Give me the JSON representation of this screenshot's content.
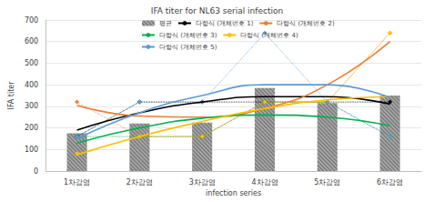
{
  "chart_data": {
    "type": "bar",
    "title": "IFA titer for NL63 serial infection",
    "x_label": "infection series",
    "y_label": "IFA titer",
    "categories": [
      "1차감염",
      "2차감염",
      "3차감염",
      "4차감염",
      "5차감염",
      "6차감염"
    ],
    "values": [
      175,
      220,
      225,
      385,
      315,
      350
    ],
    "name": "평균",
    "color": "#7f7f7f",
    "ylim": [
      0,
      700
    ],
    "yticks": [
      0,
      100,
      200,
      300,
      400,
      500,
      600,
      700
    ],
    "grid": true,
    "legend": "top",
    "series": [
      {
        "name": "다항식 (개체번호 1)",
        "color": "#000000",
        "type": "line",
        "values": [
          190,
          270,
          320,
          345,
          345,
          310
        ],
        "points": [
          160,
          320,
          320,
          320,
          320,
          320
        ]
      },
      {
        "name": "다항식 (개체번호 2)",
        "color": "#ed7d31",
        "type": "line",
        "values": [
          305,
          255,
          250,
          290,
          400,
          600
        ],
        "points": [
          320,
          160,
          160,
          320,
          320,
          640
        ]
      },
      {
        "name": "다항식 (개체번호 3)",
        "color": "#00b050",
        "type": "line",
        "values": [
          130,
          200,
          245,
          260,
          250,
          210
        ],
        "points": [
          160,
          160,
          160,
          320,
          320,
          160
        ]
      },
      {
        "name": "다항식 (개체번호 4)",
        "color": "#ffc000",
        "type": "line",
        "values": [
          75,
          160,
          230,
          290,
          330,
          345
        ],
        "points": [
          80,
          160,
          160,
          320,
          320,
          640
        ]
      },
      {
        "name": "다항식 (개체번호 5)",
        "color": "#5b9bd5",
        "type": "line",
        "values": [
          150,
          270,
          350,
          400,
          400,
          340
        ],
        "points": [
          160,
          320,
          320,
          640,
          320,
          160
        ]
      }
    ]
  }
}
